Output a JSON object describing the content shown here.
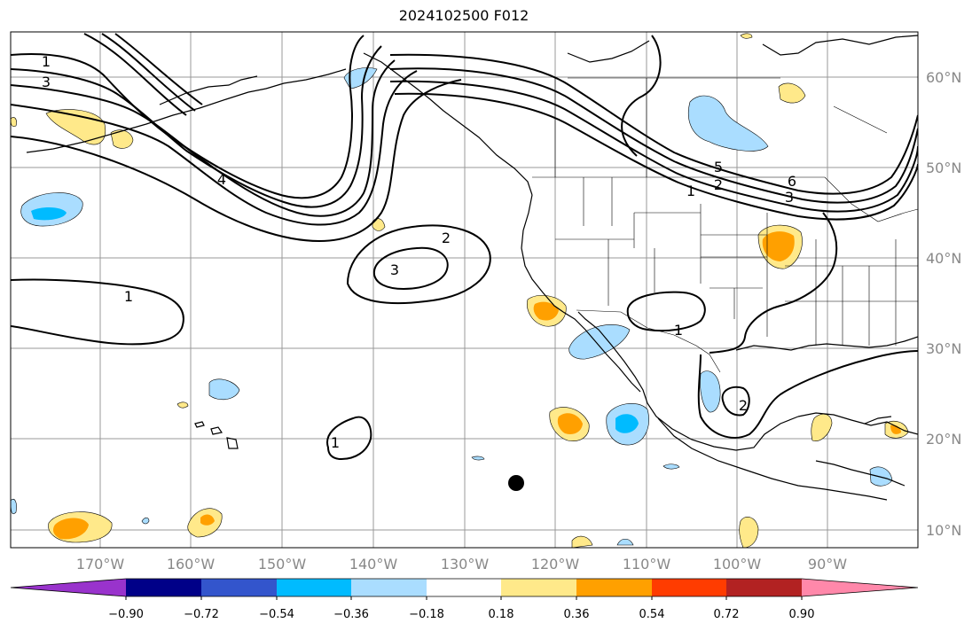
{
  "title": "2024102500 F012",
  "lat_labels": [
    "60°N",
    "50°N",
    "40°N",
    "30°N",
    "20°N",
    "10°N"
  ],
  "lon_labels": [
    "170°W",
    "160°W",
    "150°W",
    "140°W",
    "130°W",
    "120°W",
    "110°W",
    "100°W",
    "90°W"
  ],
  "contour_labels": [
    "1",
    "3",
    "4",
    "2",
    "3",
    "1",
    "1",
    "2",
    "5",
    "6",
    "3",
    "1",
    "2",
    "1"
  ],
  "colorbar": {
    "tick_labels": [
      "−0.90",
      "−0.72",
      "−0.54",
      "−0.36",
      "−0.18",
      "0.18",
      "0.36",
      "0.54",
      "0.72",
      "0.90"
    ],
    "colors": [
      "#9933cc",
      "#000088",
      "#3355cc",
      "#00bbff",
      "#aaddff",
      "#ffffff",
      "#ffe98a",
      "#ffa000",
      "#ff3c00",
      "#b22222",
      "#ff88aa"
    ]
  },
  "marker": {
    "label": ""
  }
}
